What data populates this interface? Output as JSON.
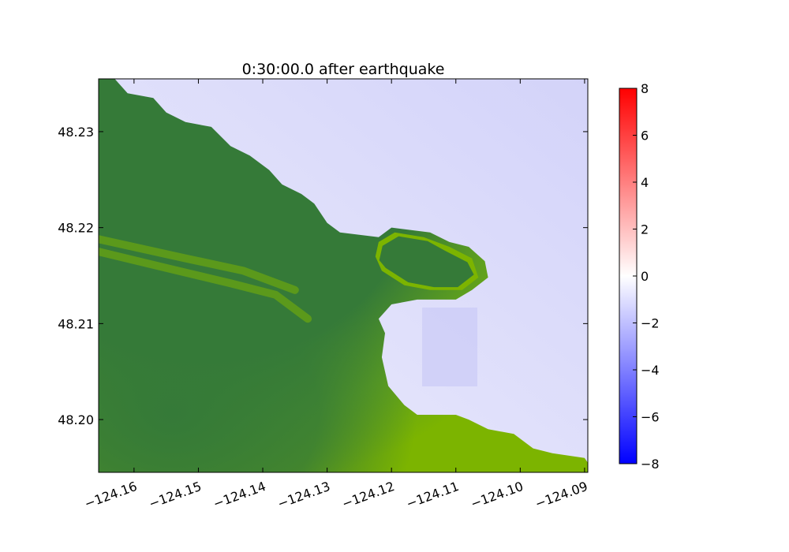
{
  "chart_data": {
    "type": "heatmap",
    "title": "0:30:00.0 after earthquake",
    "xlabel": "",
    "ylabel": "",
    "xlim": [
      -124.1655,
      -124.0895
    ],
    "ylim": [
      48.1945,
      48.2355
    ],
    "x_ticks": [
      -124.16,
      -124.15,
      -124.14,
      -124.13,
      -124.12,
      -124.11,
      -124.1,
      -124.09
    ],
    "x_tick_labels": [
      "−124.16",
      "−124.15",
      "−124.14",
      "−124.13",
      "−124.12",
      "−124.11",
      "−124.10",
      "−124.09"
    ],
    "y_ticks": [
      48.2,
      48.21,
      48.22,
      48.23
    ],
    "y_tick_labels": [
      "48.20",
      "48.21",
      "48.22",
      "48.23"
    ],
    "grid": false,
    "colorbar": {
      "range": [
        -8,
        8
      ],
      "ticks": [
        8,
        6,
        4,
        2,
        0,
        -2,
        -4,
        -6,
        -8
      ],
      "tick_labels": [
        "8",
        "6",
        "4",
        "2",
        "0",
        "−2",
        "−4",
        "−6",
        "−8"
      ],
      "colors": {
        "low": "#0000ff",
        "mid": "#ffffff",
        "high": "#ff0000"
      }
    },
    "water_value_range": [
      -2.5,
      -0.5
    ],
    "land_colors": {
      "high": "#357a38",
      "low": "#7cb400"
    },
    "coastline": [
      [
        -124.1655,
        48.2355
      ],
      [
        -124.163,
        48.2355
      ],
      [
        -124.161,
        48.234
      ],
      [
        -124.157,
        48.2335
      ],
      [
        -124.155,
        48.232
      ],
      [
        -124.152,
        48.231
      ],
      [
        -124.148,
        48.2305
      ],
      [
        -124.145,
        48.2285
      ],
      [
        -124.142,
        48.2275
      ],
      [
        -124.139,
        48.226
      ],
      [
        -124.137,
        48.2245
      ],
      [
        -124.134,
        48.2235
      ],
      [
        -124.132,
        48.2225
      ],
      [
        -124.13,
        48.2205
      ],
      [
        -124.128,
        48.2195
      ],
      [
        -124.122,
        48.219
      ],
      [
        -124.12,
        48.22
      ],
      [
        -124.114,
        48.2195
      ],
      [
        -124.111,
        48.2185
      ],
      [
        -124.108,
        48.218
      ],
      [
        -124.1055,
        48.2165
      ],
      [
        -124.105,
        48.2148
      ],
      [
        -124.1075,
        48.2135
      ],
      [
        -124.11,
        48.2125
      ],
      [
        -124.116,
        48.2125
      ],
      [
        -124.12,
        48.212
      ],
      [
        -124.122,
        48.2105
      ],
      [
        -124.121,
        48.209
      ],
      [
        -124.1215,
        48.2065
      ],
      [
        -124.1205,
        48.2035
      ],
      [
        -124.118,
        48.2015
      ],
      [
        -124.116,
        48.2005
      ],
      [
        -124.114,
        48.2005
      ],
      [
        -124.11,
        48.2005
      ],
      [
        -124.108,
        48.2
      ],
      [
        -124.105,
        48.199
      ],
      [
        -124.101,
        48.1985
      ],
      [
        -124.098,
        48.197
      ],
      [
        -124.095,
        48.1965
      ],
      [
        -124.09,
        48.196
      ],
      [
        -124.0895,
        48.1955
      ],
      [
        -124.0895,
        48.1945
      ],
      [
        -124.1655,
        48.1945
      ]
    ],
    "island": [
      [
        -124.122,
        48.2185
      ],
      [
        -124.1195,
        48.2195
      ],
      [
        -124.115,
        48.219
      ],
      [
        -124.111,
        48.218
      ],
      [
        -124.1075,
        48.2168
      ],
      [
        -124.1065,
        48.2148
      ],
      [
        -124.109,
        48.2135
      ],
      [
        -124.114,
        48.2135
      ],
      [
        -124.118,
        48.214
      ],
      [
        -124.1215,
        48.2155
      ],
      [
        -124.1225,
        48.217
      ]
    ],
    "ridges": [
      [
        [
          -124.1655,
          48.2175
        ],
        [
          -124.155,
          48.2158
        ],
        [
          -124.145,
          48.2142
        ],
        [
          -124.138,
          48.213
        ],
        [
          -124.133,
          48.2105
        ]
      ],
      [
        [
          -124.1655,
          48.2188
        ],
        [
          -124.152,
          48.2168
        ],
        [
          -124.143,
          48.2155
        ],
        [
          -124.135,
          48.2135
        ]
      ]
    ]
  }
}
